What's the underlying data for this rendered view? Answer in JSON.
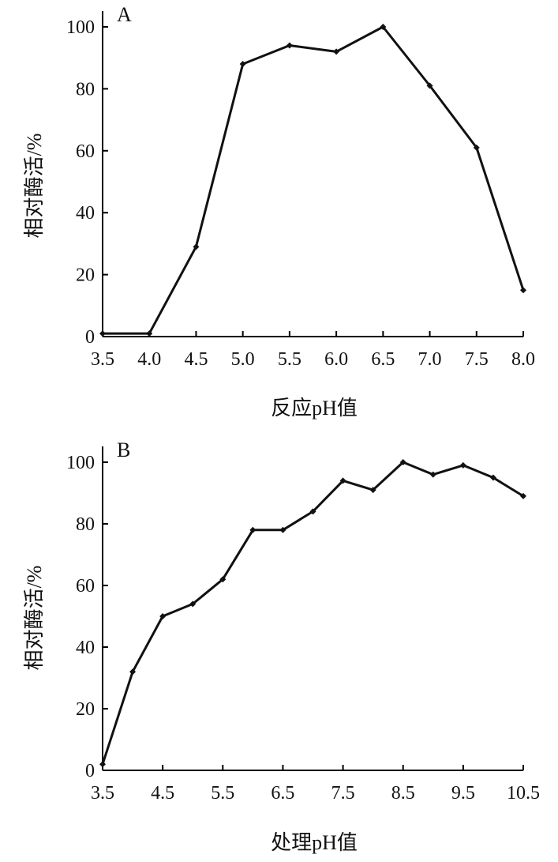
{
  "chart_data": [
    {
      "type": "line",
      "panel_label": "A",
      "xlabel": "反应pH值",
      "ylabel": "相对酶活/%",
      "x": [
        3.5,
        4.0,
        4.5,
        5.0,
        5.5,
        6.0,
        6.5,
        7.0,
        7.5,
        8.0
      ],
      "x_tick_labels": [
        "3.5",
        "4.0",
        "4.5",
        "5.0",
        "5.5",
        "6.0",
        "6.5",
        "7.0",
        "7.5",
        "8.0"
      ],
      "series": [
        {
          "values": [
            1,
            1,
            29,
            88,
            94,
            92,
            100,
            81,
            61,
            15
          ]
        }
      ],
      "xlim": [
        3.5,
        8.0
      ],
      "ylim": [
        0,
        100
      ],
      "y_ticks": [
        0,
        20,
        40,
        60,
        80,
        100
      ],
      "grid": false
    },
    {
      "type": "line",
      "panel_label": "B",
      "xlabel": "处理pH值",
      "ylabel": "相对酶活/%",
      "x": [
        3.5,
        4.0,
        4.5,
        5.0,
        5.5,
        6.0,
        6.5,
        7.0,
        7.5,
        8.0,
        8.5,
        9.0,
        9.5,
        10.0,
        10.5
      ],
      "x_ticks": [
        3.5,
        4.5,
        5.5,
        6.5,
        7.5,
        8.5,
        9.5,
        10.5
      ],
      "x_tick_labels": [
        "3.5",
        "4.5",
        "5.5",
        "6.5",
        "7.5",
        "8.5",
        "9.5",
        "10.5"
      ],
      "series": [
        {
          "values": [
            2,
            32,
            50,
            54,
            62,
            78,
            78,
            84,
            94,
            91,
            100,
            96,
            99,
            95,
            89
          ]
        }
      ],
      "xlim": [
        3.5,
        10.5
      ],
      "ylim": [
        0,
        100
      ],
      "y_ticks": [
        0,
        20,
        40,
        60,
        80,
        100
      ],
      "grid": false
    }
  ]
}
